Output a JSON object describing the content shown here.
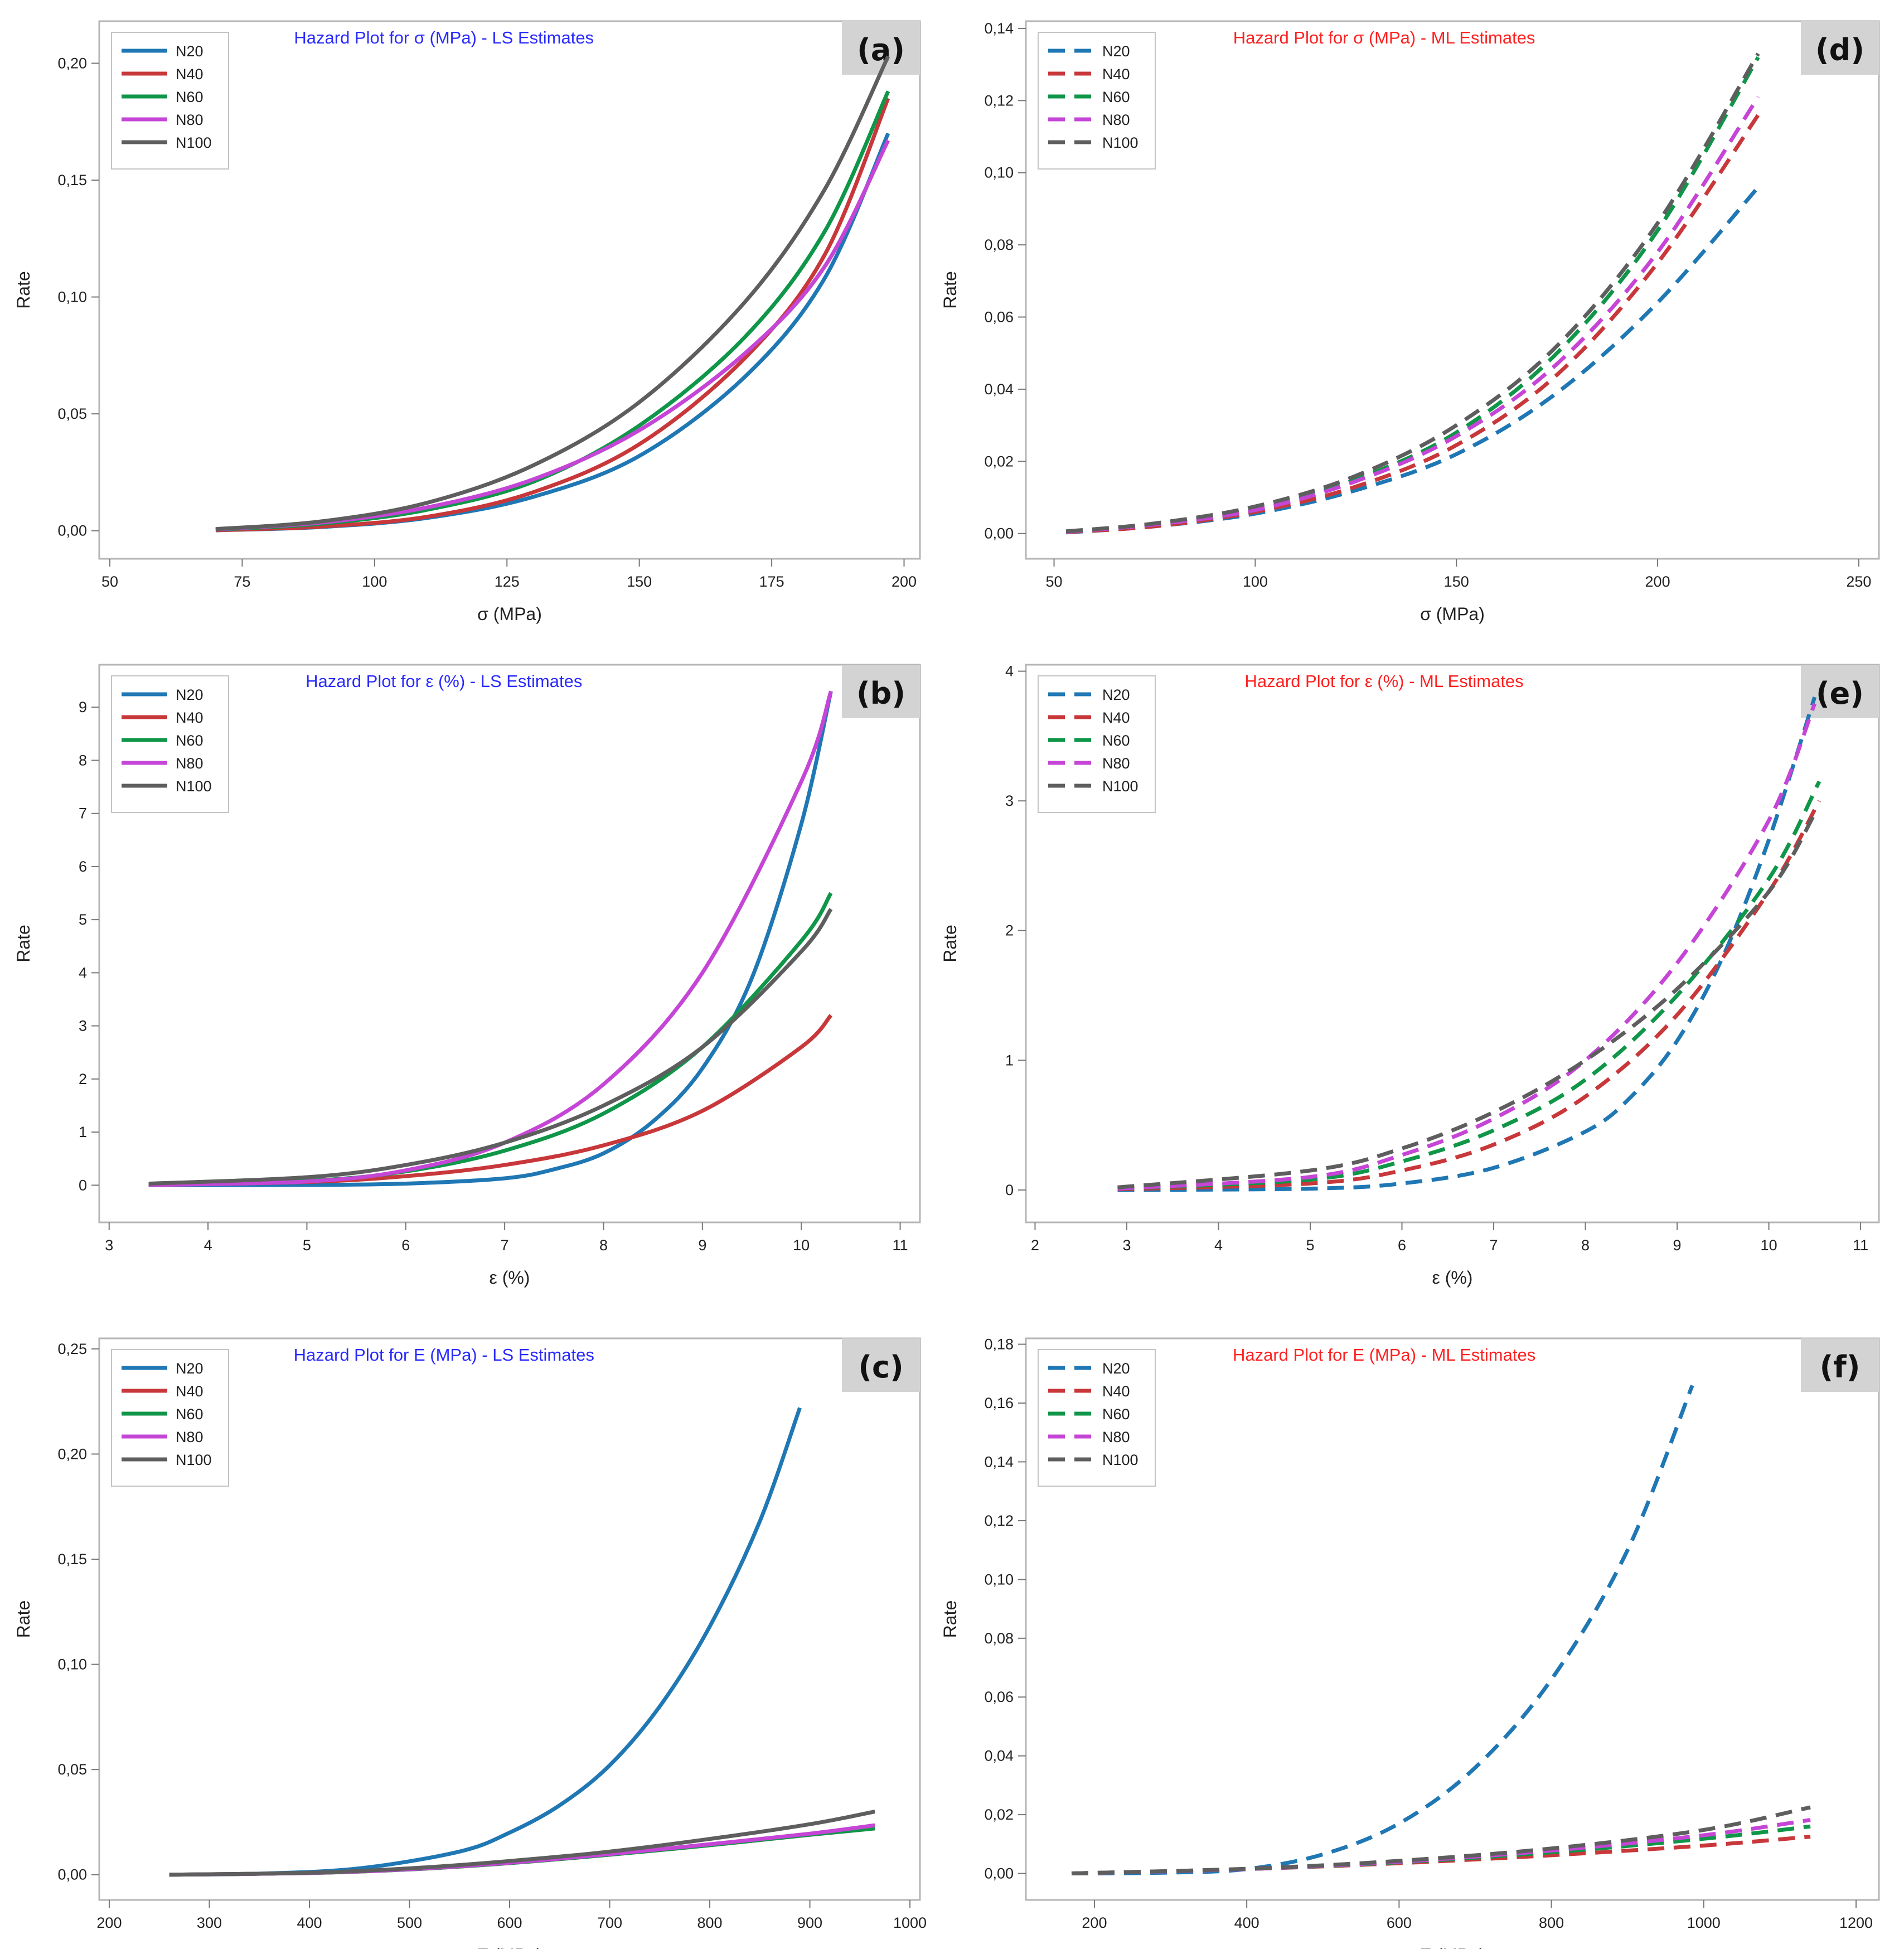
{
  "figure": {
    "colors": {
      "N20": "#1f77b4",
      "N40": "#c8373a",
      "N60": "#0f9648",
      "N80": "#c545d6",
      "N100": "#5e5e5e"
    }
  },
  "chart_data": [
    {
      "panel": "(a)",
      "type": "line",
      "line_style": "solid",
      "title": "Hazard Plot for σ (MPa) - LS Estimates",
      "title_color": "#2a2aff",
      "xlabel": "σ (MPa)",
      "ylabel": "Rate",
      "xlim": [
        48,
        203
      ],
      "ylim": [
        -0.012,
        0.218
      ],
      "xticks": [
        50,
        75,
        100,
        125,
        150,
        175,
        200
      ],
      "xtick_labels": [
        "50",
        "75",
        "100",
        "125",
        "150",
        "175",
        "200"
      ],
      "yticks": [
        0,
        0.05,
        0.1,
        0.15,
        0.2
      ],
      "ytick_labels": [
        "0,00",
        "0,05",
        "0,10",
        "0,15",
        "0,20"
      ],
      "grid": false,
      "legend_position": "top-left",
      "series": [
        {
          "name": "N20",
          "color": "#1f77b4",
          "x": [
            70,
            90,
            110,
            130,
            150,
            170,
            185,
            197
          ],
          "y": [
            0.0002,
            0.0016,
            0.0055,
            0.0145,
            0.032,
            0.066,
            0.108,
            0.17
          ]
        },
        {
          "name": "N40",
          "color": "#c8373a",
          "x": [
            70,
            90,
            110,
            130,
            150,
            170,
            185,
            197
          ],
          "y": [
            0.0002,
            0.0018,
            0.006,
            0.0165,
            0.037,
            0.074,
            0.118,
            0.185
          ]
        },
        {
          "name": "N60",
          "color": "#0f9648",
          "x": [
            70,
            90,
            110,
            130,
            150,
            170,
            185,
            197
          ],
          "y": [
            0.0005,
            0.003,
            0.009,
            0.021,
            0.045,
            0.083,
            0.128,
            0.188
          ]
        },
        {
          "name": "N80",
          "color": "#c545d6",
          "x": [
            70,
            90,
            110,
            130,
            150,
            170,
            185,
            197
          ],
          "y": [
            0.0006,
            0.0035,
            0.01,
            0.022,
            0.043,
            0.076,
            0.113,
            0.167
          ]
        },
        {
          "name": "N100",
          "color": "#5e5e5e",
          "x": [
            70,
            90,
            110,
            130,
            150,
            170,
            185,
            197
          ],
          "y": [
            0.0007,
            0.004,
            0.012,
            0.028,
            0.055,
            0.098,
            0.146,
            0.203
          ]
        }
      ]
    },
    {
      "panel": "(b)",
      "type": "line",
      "line_style": "solid",
      "title": "Hazard Plot for ε (%) - LS Estimates",
      "title_color": "#2a2aff",
      "xlabel": "ε (%)",
      "ylabel": "Rate",
      "xlim": [
        2.9,
        11.2
      ],
      "ylim": [
        -0.7,
        9.8
      ],
      "xticks": [
        3,
        4,
        5,
        6,
        7,
        8,
        9,
        10,
        11
      ],
      "xtick_labels": [
        "3",
        "4",
        "5",
        "6",
        "7",
        "8",
        "9",
        "10",
        "11"
      ],
      "yticks": [
        0,
        1,
        2,
        3,
        4,
        5,
        6,
        7,
        8,
        9
      ],
      "ytick_labels": [
        "0",
        "1",
        "2",
        "3",
        "4",
        "5",
        "6",
        "7",
        "8",
        "9"
      ],
      "grid": false,
      "legend_position": "top-left",
      "series": [
        {
          "name": "N20",
          "color": "#1f77b4",
          "x": [
            3.4,
            5,
            6,
            7,
            7.5,
            8,
            8.5,
            9,
            9.5,
            10,
            10.3
          ],
          "y": [
            0,
            0.005,
            0.03,
            0.13,
            0.3,
            0.6,
            1.2,
            2.2,
            3.9,
            6.8,
            9.3
          ]
        },
        {
          "name": "N40",
          "color": "#c8373a",
          "x": [
            3.4,
            5,
            6,
            7,
            8,
            9,
            10,
            10.3
          ],
          "y": [
            0.005,
            0.06,
            0.17,
            0.38,
            0.75,
            1.4,
            2.6,
            3.2
          ]
        },
        {
          "name": "N60",
          "color": "#0f9648",
          "x": [
            3.4,
            5,
            6,
            7,
            8,
            9,
            10,
            10.3
          ],
          "y": [
            0.01,
            0.08,
            0.26,
            0.65,
            1.35,
            2.6,
            4.6,
            5.5
          ]
        },
        {
          "name": "N80",
          "color": "#c545d6",
          "x": [
            3.4,
            5,
            6,
            7,
            8,
            9,
            10,
            10.3
          ],
          "y": [
            0.005,
            0.07,
            0.28,
            0.8,
            1.9,
            4.0,
            7.6,
            9.3
          ]
        },
        {
          "name": "N100",
          "color": "#5e5e5e",
          "x": [
            3.4,
            5,
            6,
            7,
            8,
            9,
            10,
            10.3
          ],
          "y": [
            0.03,
            0.15,
            0.38,
            0.8,
            1.5,
            2.6,
            4.4,
            5.2
          ]
        }
      ]
    },
    {
      "panel": "(c)",
      "type": "line",
      "line_style": "solid",
      "title": "Hazard Plot for E (MPa) - LS Estimates",
      "title_color": "#2a2aff",
      "xlabel": "E (MPa)",
      "ylabel": "Rate",
      "xlim": [
        190,
        1010
      ],
      "ylim": [
        -0.012,
        0.255
      ],
      "xticks": [
        200,
        300,
        400,
        500,
        600,
        700,
        800,
        900,
        1000
      ],
      "xtick_labels": [
        "200",
        "300",
        "400",
        "500",
        "600",
        "700",
        "800",
        "900",
        "1000"
      ],
      "yticks": [
        0,
        0.05,
        0.1,
        0.15,
        0.2,
        0.25
      ],
      "ytick_labels": [
        "0,00",
        "0,05",
        "0,10",
        "0,15",
        "0,20",
        "0,25"
      ],
      "grid": false,
      "legend_position": "top-left",
      "series": [
        {
          "name": "N20",
          "color": "#1f77b4",
          "x": [
            260,
            350,
            450,
            550,
            600,
            650,
            700,
            750,
            800,
            850,
            890
          ],
          "y": [
            0,
            0.0005,
            0.003,
            0.011,
            0.02,
            0.033,
            0.052,
            0.08,
            0.118,
            0.168,
            0.222
          ]
        },
        {
          "name": "N40",
          "color": "#c8373a",
          "x": [
            260,
            400,
            500,
            600,
            700,
            800,
            900,
            965
          ],
          "y": [
            0,
            0.0008,
            0.0025,
            0.0055,
            0.0095,
            0.014,
            0.019,
            0.022
          ]
        },
        {
          "name": "N60",
          "color": "#0f9648",
          "x": [
            260,
            400,
            500,
            600,
            700,
            800,
            900,
            965
          ],
          "y": [
            0,
            0.0008,
            0.0025,
            0.0055,
            0.0095,
            0.014,
            0.019,
            0.022
          ]
        },
        {
          "name": "N80",
          "color": "#c545d6",
          "x": [
            260,
            400,
            500,
            600,
            700,
            800,
            900,
            965
          ],
          "y": [
            0,
            0.0008,
            0.0026,
            0.0057,
            0.0098,
            0.0145,
            0.0195,
            0.0235
          ]
        },
        {
          "name": "N100",
          "color": "#5e5e5e",
          "x": [
            260,
            400,
            500,
            600,
            700,
            800,
            900,
            965
          ],
          "y": [
            0,
            0.0009,
            0.003,
            0.0065,
            0.011,
            0.017,
            0.024,
            0.03
          ]
        }
      ]
    },
    {
      "panel": "(d)",
      "type": "line",
      "line_style": "dashed",
      "title": "Hazard Plot for σ (MPa) - ML Estimates",
      "title_color": "#ff2020",
      "xlabel": "σ (MPa)",
      "ylabel": "Rate",
      "xlim": [
        43,
        255
      ],
      "ylim": [
        -0.007,
        0.142
      ],
      "xticks": [
        50,
        100,
        150,
        200,
        250
      ],
      "xtick_labels": [
        "50",
        "100",
        "150",
        "200",
        "250"
      ],
      "yticks": [
        0,
        0.02,
        0.04,
        0.06,
        0.08,
        0.1,
        0.12,
        0.14
      ],
      "ytick_labels": [
        "0,00",
        "0,02",
        "0,04",
        "0,06",
        "0,08",
        "0,10",
        "0,12",
        "0,14"
      ],
      "grid": false,
      "legend_position": "top-left",
      "series": [
        {
          "name": "N20",
          "color": "#1f77b4",
          "x": [
            53,
            75,
            100,
            125,
            150,
            175,
            200,
            225
          ],
          "y": [
            0.0003,
            0.002,
            0.0055,
            0.012,
            0.022,
            0.039,
            0.064,
            0.096
          ]
        },
        {
          "name": "N40",
          "color": "#c8373a",
          "x": [
            53,
            75,
            100,
            125,
            150,
            175,
            200,
            225
          ],
          "y": [
            0.0004,
            0.002,
            0.006,
            0.013,
            0.0245,
            0.044,
            0.075,
            0.116
          ]
        },
        {
          "name": "N60",
          "color": "#0f9648",
          "x": [
            53,
            75,
            100,
            125,
            150,
            175,
            200,
            225
          ],
          "y": [
            0.0005,
            0.0025,
            0.0065,
            0.015,
            0.028,
            0.05,
            0.084,
            0.132
          ]
        },
        {
          "name": "N80",
          "color": "#c545d6",
          "x": [
            53,
            75,
            100,
            125,
            150,
            175,
            200,
            225
          ],
          "y": [
            0.0005,
            0.0025,
            0.0065,
            0.0145,
            0.027,
            0.047,
            0.078,
            0.121
          ]
        },
        {
          "name": "N100",
          "color": "#5e5e5e",
          "x": [
            53,
            75,
            100,
            125,
            150,
            175,
            200,
            225
          ],
          "y": [
            0.0006,
            0.0028,
            0.0075,
            0.016,
            0.03,
            0.052,
            0.086,
            0.133
          ]
        }
      ]
    },
    {
      "panel": "(e)",
      "type": "line",
      "line_style": "dashed",
      "title": "Hazard Plot for ε (%) - ML Estimates",
      "title_color": "#ff2020",
      "xlabel": "ε (%)",
      "ylabel": "Rate",
      "xlim": [
        1.9,
        11.2
      ],
      "ylim": [
        -0.25,
        4.05
      ],
      "xticks": [
        2,
        3,
        4,
        5,
        6,
        7,
        8,
        9,
        10,
        11
      ],
      "xtick_labels": [
        "2",
        "3",
        "4",
        "5",
        "6",
        "7",
        "8",
        "9",
        "10",
        "11"
      ],
      "yticks": [
        0,
        1,
        2,
        3,
        4
      ],
      "ytick_labels": [
        "0",
        "1",
        "2",
        "3",
        "4"
      ],
      "grid": false,
      "legend_position": "top-left",
      "series": [
        {
          "name": "N20",
          "color": "#1f77b4",
          "x": [
            2.9,
            5,
            6,
            7,
            8,
            8.5,
            9,
            9.5,
            10,
            10.5
          ],
          "y": [
            0,
            0.01,
            0.05,
            0.17,
            0.45,
            0.72,
            1.15,
            1.8,
            2.7,
            3.8
          ]
        },
        {
          "name": "N40",
          "color": "#c8373a",
          "x": [
            2.9,
            5,
            6,
            7,
            8,
            9,
            10,
            10.55
          ],
          "y": [
            0.005,
            0.05,
            0.15,
            0.35,
            0.72,
            1.35,
            2.3,
            3.0
          ]
        },
        {
          "name": "N60",
          "color": "#0f9648",
          "x": [
            2.9,
            5,
            6,
            7,
            8,
            9,
            10,
            10.55
          ],
          "y": [
            0.01,
            0.08,
            0.22,
            0.46,
            0.85,
            1.5,
            2.4,
            3.15
          ]
        },
        {
          "name": "N80",
          "color": "#c545d6",
          "x": [
            2.9,
            5,
            6,
            7,
            8,
            9,
            10,
            10.5
          ],
          "y": [
            0.01,
            0.1,
            0.27,
            0.55,
            1.0,
            1.75,
            2.85,
            3.75
          ]
        },
        {
          "name": "N100",
          "color": "#5e5e5e",
          "x": [
            2.9,
            5,
            6,
            7,
            8,
            9,
            10,
            10.5
          ],
          "y": [
            0.02,
            0.15,
            0.32,
            0.6,
            1.0,
            1.55,
            2.3,
            2.9
          ]
        }
      ]
    },
    {
      "panel": "(f)",
      "type": "line",
      "line_style": "dashed",
      "title": "Hazard Plot for E (MPa) - ML Estimates",
      "title_color": "#ff2020",
      "xlabel": "E (MPa)",
      "ylabel": "Rate",
      "xlim": [
        110,
        1230
      ],
      "ylim": [
        -0.009,
        0.182
      ],
      "xticks": [
        200,
        400,
        600,
        800,
        1000,
        1200
      ],
      "xtick_labels": [
        "200",
        "400",
        "600",
        "800",
        "1000",
        "1200"
      ],
      "yticks": [
        0,
        0.02,
        0.04,
        0.06,
        0.08,
        0.1,
        0.12,
        0.14,
        0.16,
        0.18
      ],
      "ytick_labels": [
        "0,00",
        "0,02",
        "0,04",
        "0,06",
        "0,08",
        "0,10",
        "0,12",
        "0,14",
        "0,16",
        "0,18"
      ],
      "grid": false,
      "legend_position": "top-left",
      "series": [
        {
          "name": "N20",
          "color": "#1f77b4",
          "x": [
            170,
            300,
            400,
            500,
            600,
            700,
            800,
            900,
            985
          ],
          "y": [
            0,
            0.0003,
            0.0015,
            0.0065,
            0.017,
            0.036,
            0.066,
            0.11,
            0.166
          ]
        },
        {
          "name": "N40",
          "color": "#c8373a",
          "x": [
            170,
            400,
            600,
            800,
            1000,
            1140
          ],
          "y": [
            0,
            0.0015,
            0.0035,
            0.0062,
            0.0095,
            0.0125
          ]
        },
        {
          "name": "N60",
          "color": "#0f9648",
          "x": [
            170,
            400,
            600,
            800,
            1000,
            1140
          ],
          "y": [
            0,
            0.0015,
            0.0038,
            0.0072,
            0.0118,
            0.016
          ]
        },
        {
          "name": "N80",
          "color": "#c545d6",
          "x": [
            170,
            400,
            600,
            800,
            1000,
            1140
          ],
          "y": [
            0,
            0.0015,
            0.004,
            0.0078,
            0.013,
            0.0182
          ]
        },
        {
          "name": "N100",
          "color": "#5e5e5e",
          "x": [
            170,
            400,
            600,
            800,
            1000,
            1140
          ],
          "y": [
            0,
            0.0016,
            0.0043,
            0.0085,
            0.0148,
            0.0225
          ]
        }
      ]
    }
  ]
}
